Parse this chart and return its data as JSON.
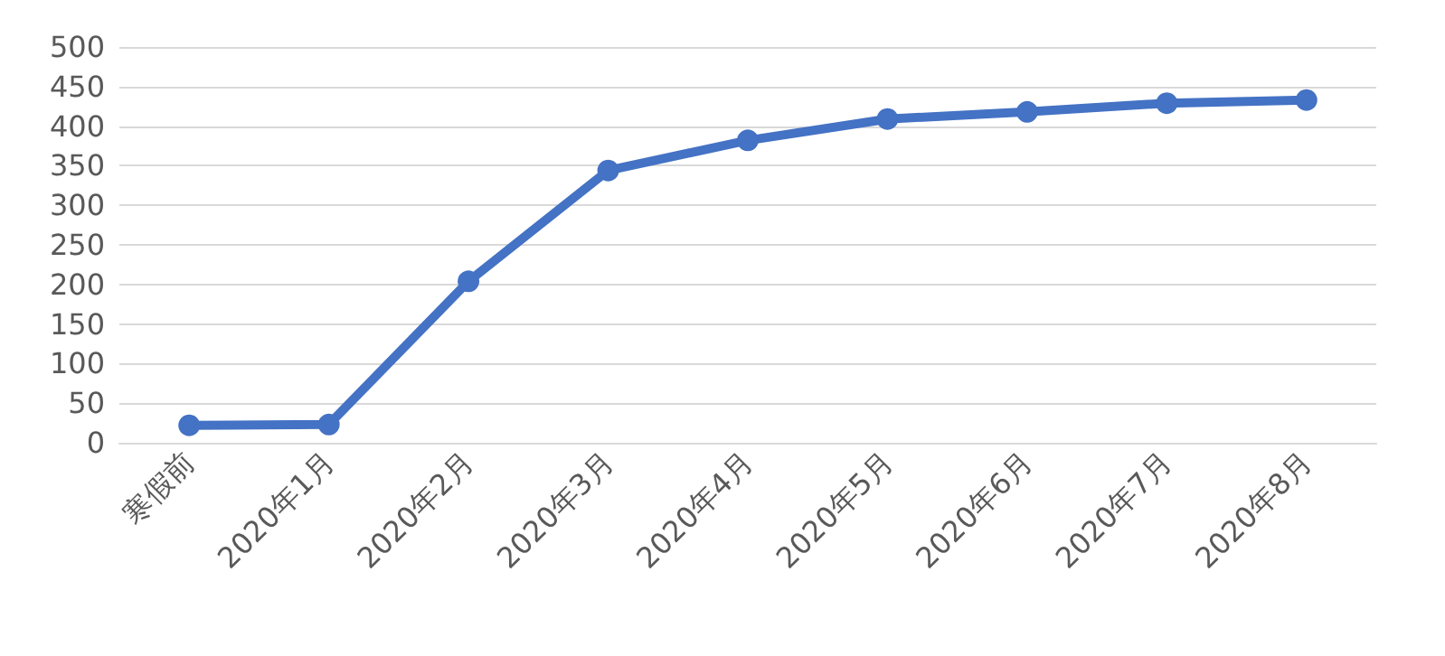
{
  "chart_data": {
    "type": "line",
    "categories": [
      "寒假前",
      "2020年1月",
      "2020年2月",
      "2020年3月",
      "2020年4月",
      "2020年5月",
      "2020年6月",
      "2020年7月",
      "2020年8月"
    ],
    "series": [
      {
        "color": "#4472c4",
        "values": [
          22,
          23,
          204,
          344,
          382,
          409,
          418,
          429,
          433
        ]
      }
    ],
    "ylim": [
      0,
      500
    ],
    "yticks": [
      0,
      50,
      100,
      150,
      200,
      250,
      300,
      350,
      400,
      450,
      500
    ],
    "grid": "y",
    "marker": "circle",
    "line_style": "solid"
  }
}
